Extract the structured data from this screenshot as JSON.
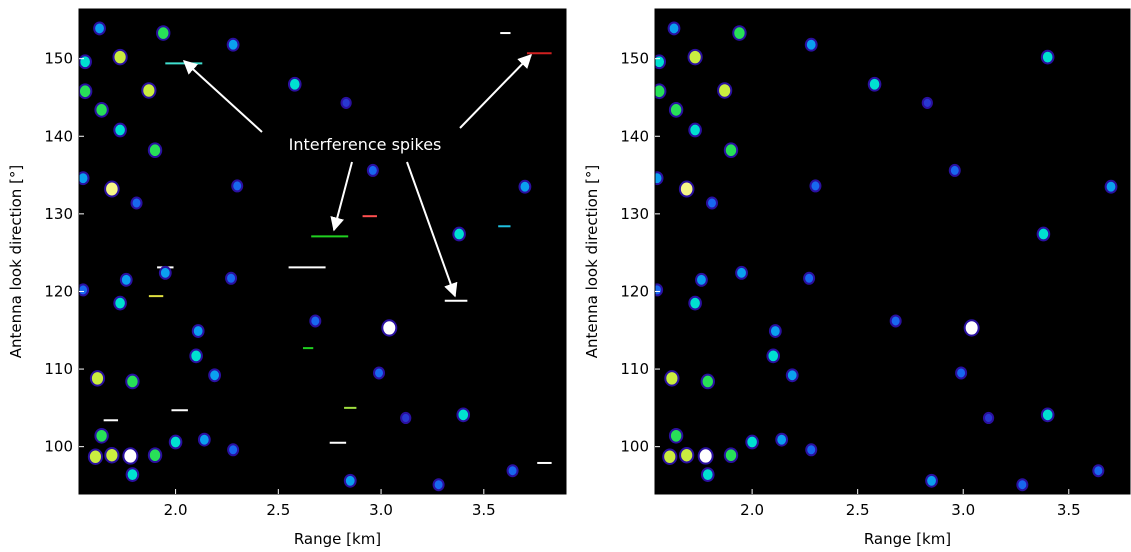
{
  "chart_data": [
    {
      "type": "scatter",
      "xlabel": "Range [km]",
      "ylabel": "Antenna look direction [°]",
      "annotation": "Interference spikes",
      "background": "#000000",
      "xlim": [
        1.53,
        3.9
      ],
      "ylim": [
        93.9,
        156.4
      ],
      "xticks": [
        {
          "value": 2,
          "label": "2.0"
        },
        2.5,
        {
          "value": 3,
          "label": "3.0"
        },
        3.5
      ],
      "yticks": [
        100,
        110,
        120,
        130,
        140,
        150
      ],
      "x": [
        1.63,
        1.94,
        1.73,
        1.56,
        1.56,
        1.87,
        1.64,
        1.73,
        1.9,
        2.28,
        2.58,
        2.83,
        1.55,
        1.69,
        1.81,
        2.3,
        2.96,
        3.38,
        3.7,
        1.76,
        1.95,
        2.27,
        1.55,
        1.73,
        2.11,
        3.04,
        2.68,
        1.62,
        1.79,
        2.1,
        2.19,
        2.99,
        1.64,
        1.61,
        1.69,
        1.78,
        1.9,
        1.79,
        2.0,
        2.14,
        2.28,
        3.4,
        2.85,
        3.28,
        3.64,
        3.12
      ],
      "y": [
        153.9,
        153.3,
        150.2,
        149.6,
        145.8,
        145.9,
        143.4,
        140.8,
        138.2,
        151.8,
        146.7,
        144.3,
        134.6,
        133.2,
        131.4,
        133.6,
        135.6,
        127.4,
        133.5,
        121.5,
        122.4,
        121.7,
        120.2,
        118.5,
        114.9,
        115.3,
        116.2,
        108.8,
        108.4,
        111.7,
        109.2,
        109.5,
        101.4,
        98.7,
        98.9,
        98.8,
        98.9,
        96.4,
        100.6,
        100.9,
        99.6,
        104.1,
        95.6,
        95.1,
        96.9,
        103.7
      ],
      "values": [
        0.6,
        0.8,
        0.9,
        0.7,
        0.8,
        0.9,
        0.8,
        0.7,
        0.8,
        0.6,
        0.7,
        0.4,
        0.6,
        0.95,
        0.5,
        0.5,
        0.5,
        0.7,
        0.6,
        0.6,
        0.6,
        0.5,
        0.5,
        0.7,
        0.6,
        1.0,
        0.5,
        0.9,
        0.8,
        0.7,
        0.6,
        0.5,
        0.8,
        0.9,
        0.9,
        1.0,
        0.8,
        0.7,
        0.7,
        0.6,
        0.5,
        0.7,
        0.6,
        0.5,
        0.5,
        0.4
      ],
      "spikes": {
        "x_start": [
          1.95,
          3.71,
          2.66,
          3.31,
          2.55,
          1.91,
          2.75,
          3.76,
          1.65,
          1.98,
          2.91,
          1.87,
          3.57,
          2.82,
          2.62,
          3.58
        ],
        "x_end": [
          2.13,
          3.83,
          2.84,
          3.42,
          2.73,
          1.99,
          2.83,
          3.83,
          1.72,
          2.06,
          2.98,
          1.94,
          3.63,
          2.88,
          2.67,
          3.63
        ],
        "y": [
          149.4,
          150.7,
          127.1,
          118.8,
          123.1,
          123.1,
          100.5,
          97.9,
          103.4,
          104.7,
          129.7,
          119.4,
          128.4,
          105.0,
          112.7,
          153.3
        ],
        "colors": [
          "#40e0d0",
          "#d02020",
          "#20d020",
          "#ffffff",
          "#ffffff",
          "#ffffff",
          "#ffffff",
          "#ffffff",
          "#ffffff",
          "#ffffff",
          "#ff5050",
          "#e0e040",
          "#20c0e0",
          "#a0e040",
          "#20d020",
          "#ffffff"
        ]
      }
    },
    {
      "type": "scatter",
      "xlabel": "Range [km]",
      "ylabel": "Antenna look direction [°]",
      "background": "#000000",
      "xlim": [
        1.54,
        3.79
      ],
      "ylim": [
        93.9,
        156.4
      ],
      "xticks": [
        {
          "value": 2,
          "label": "2.0"
        },
        2.5,
        {
          "value": 3,
          "label": "3.0"
        },
        3.5
      ],
      "yticks": [
        100,
        110,
        120,
        130,
        140,
        150
      ],
      "x": [
        1.63,
        1.94,
        1.73,
        1.56,
        1.56,
        1.87,
        1.64,
        1.73,
        1.9,
        2.28,
        2.58,
        2.83,
        1.55,
        1.69,
        1.81,
        2.3,
        2.96,
        3.38,
        3.7,
        1.76,
        1.95,
        2.27,
        1.55,
        1.73,
        2.11,
        3.04,
        2.68,
        1.62,
        1.79,
        2.1,
        2.19,
        2.99,
        1.64,
        1.61,
        1.69,
        1.78,
        1.9,
        1.79,
        2.0,
        2.14,
        2.28,
        3.4,
        2.85,
        3.28,
        3.64,
        3.12,
        3.4
      ],
      "y": [
        153.9,
        153.3,
        150.2,
        149.6,
        145.8,
        145.9,
        143.4,
        140.8,
        138.2,
        151.8,
        146.7,
        144.3,
        134.6,
        133.2,
        131.4,
        133.6,
        135.6,
        127.4,
        133.5,
        121.5,
        122.4,
        121.7,
        120.2,
        118.5,
        114.9,
        115.3,
        116.2,
        108.8,
        108.4,
        111.7,
        109.2,
        109.5,
        101.4,
        98.7,
        98.9,
        98.8,
        98.9,
        96.4,
        100.6,
        100.9,
        99.6,
        104.1,
        95.6,
        95.1,
        96.9,
        103.7,
        150.2
      ],
      "values": [
        0.6,
        0.8,
        0.9,
        0.7,
        0.8,
        0.9,
        0.8,
        0.7,
        0.8,
        0.6,
        0.7,
        0.4,
        0.6,
        0.95,
        0.5,
        0.5,
        0.5,
        0.7,
        0.6,
        0.6,
        0.6,
        0.5,
        0.5,
        0.7,
        0.6,
        1.0,
        0.5,
        0.9,
        0.8,
        0.7,
        0.6,
        0.5,
        0.8,
        0.9,
        0.9,
        1.0,
        0.8,
        0.7,
        0.7,
        0.6,
        0.5,
        0.7,
        0.6,
        0.5,
        0.5,
        0.4,
        0.7
      ]
    }
  ]
}
